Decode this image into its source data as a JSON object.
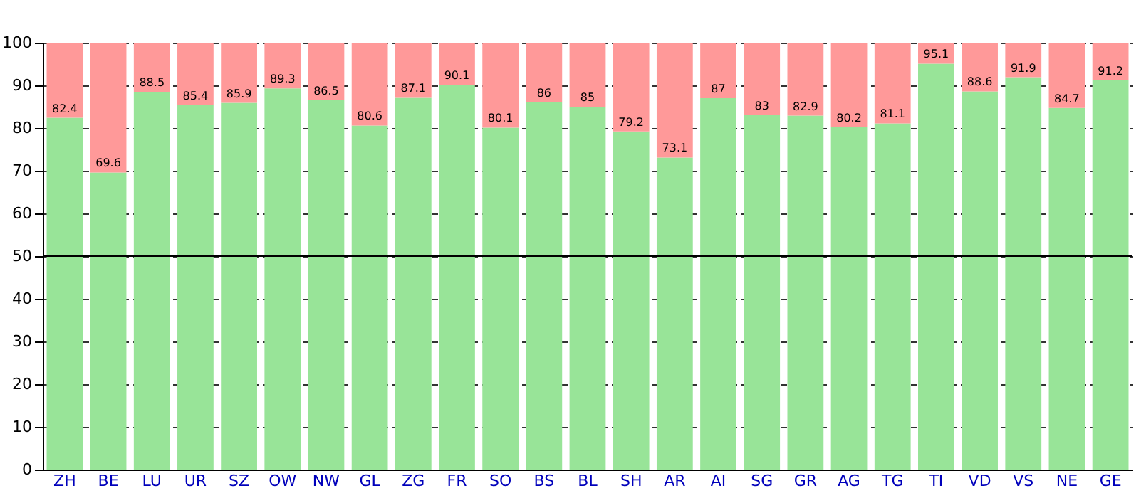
{
  "chart_data": {
    "type": "bar",
    "stacked": true,
    "categories": [
      "ZH",
      "BE",
      "LU",
      "UR",
      "SZ",
      "OW",
      "NW",
      "GL",
      "ZG",
      "FR",
      "SO",
      "BS",
      "BL",
      "SH",
      "AR",
      "AI",
      "SG",
      "GR",
      "AG",
      "TG",
      "TI",
      "VD",
      "VS",
      "NE",
      "GE"
    ],
    "series": [
      {
        "color": "#98e498",
        "values": [
          82.4,
          69.6,
          88.5,
          85.4,
          85.9,
          89.3,
          86.5,
          80.6,
          87.1,
          90.1,
          80.1,
          86,
          85,
          79.2,
          73.1,
          87,
          83,
          82.9,
          80.2,
          81.1,
          95.1,
          88.6,
          91.9,
          84.7,
          91.2
        ],
        "value_labels": [
          "82.4",
          "69.6",
          "88.5",
          "85.4",
          "85.9",
          "89.3",
          "86.5",
          "80.6",
          "87.1",
          "90.1",
          "80.1",
          "86",
          "85",
          "79.2",
          "73.1",
          "87",
          "83",
          "82.9",
          "80.2",
          "81.1",
          "95.1",
          "88.6",
          "91.9",
          "84.7",
          "91.2"
        ]
      },
      {
        "color": "#ff9999",
        "values": [
          17.6,
          30.4,
          11.5,
          14.6,
          14.1,
          10.7,
          13.5,
          19.4,
          12.9,
          9.9,
          19.9,
          14,
          15,
          20.8,
          26.9,
          13,
          17,
          17.1,
          19.8,
          18.9,
          4.9,
          11.4,
          8.1,
          15.3,
          8.8
        ]
      }
    ],
    "ylim": [
      0,
      100
    ],
    "yticks": [
      0,
      10,
      20,
      30,
      40,
      50,
      60,
      70,
      80,
      90,
      100
    ],
    "grid": "y",
    "ref_lines": [
      {
        "axis": "y",
        "value": 50,
        "color": "#000000"
      }
    ]
  }
}
